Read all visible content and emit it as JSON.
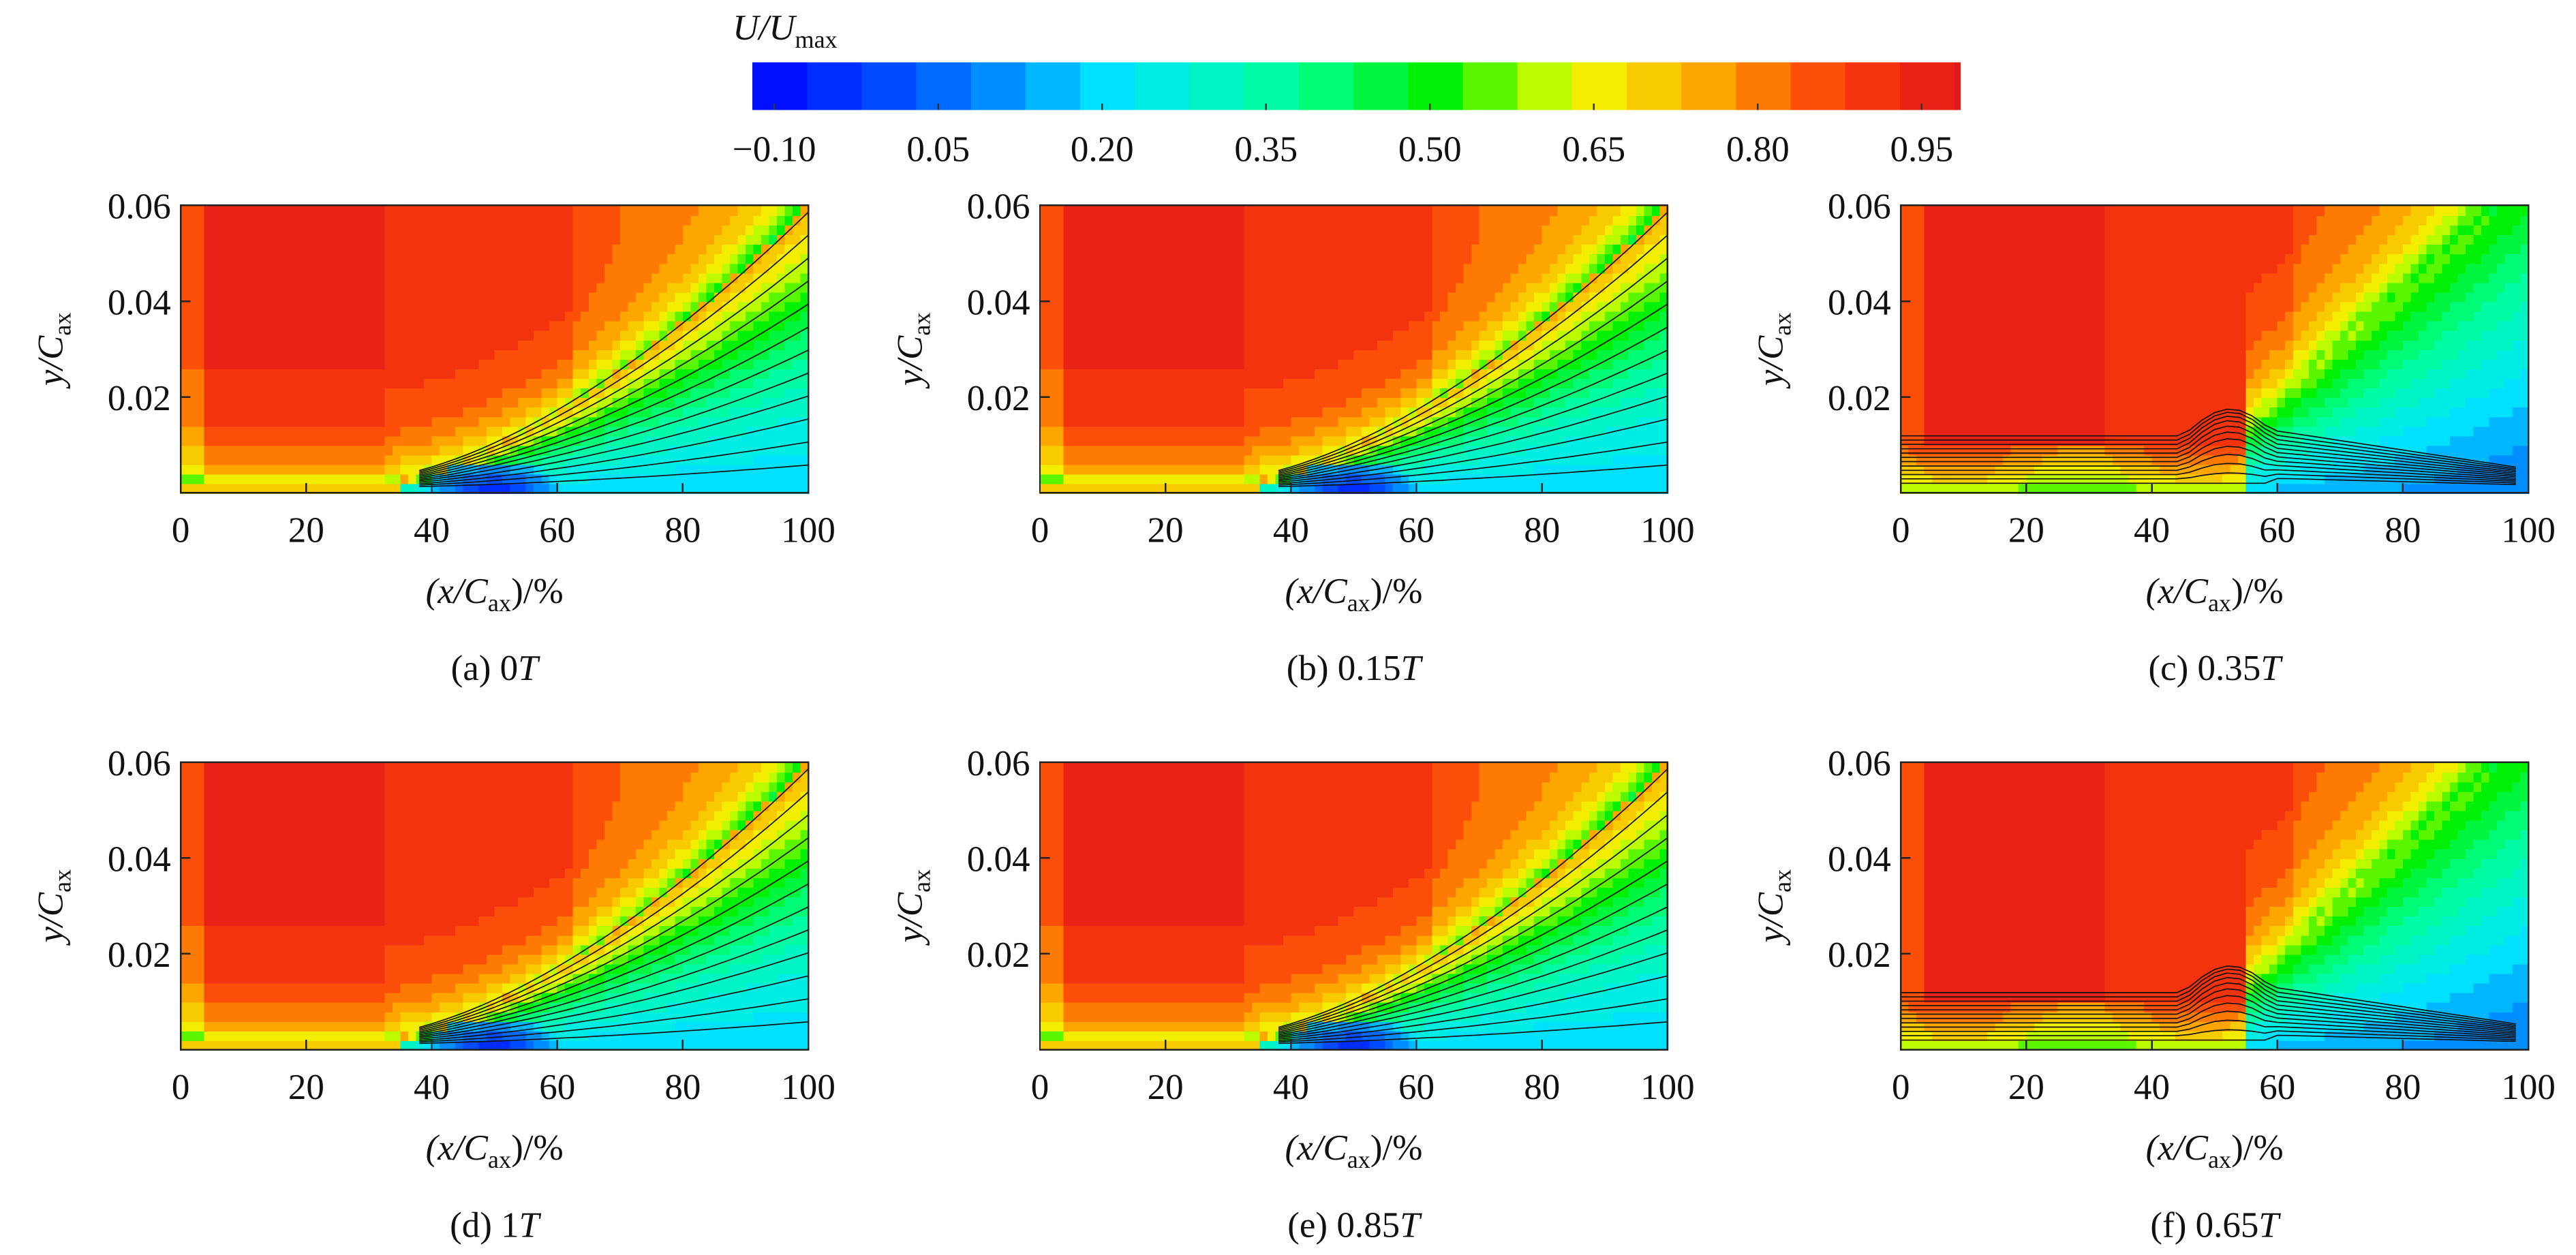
{
  "colorbar": {
    "label": [
      "U/U",
      "max"
    ],
    "clim": [
      -0.12,
      0.985
    ],
    "ticks": [
      {
        "value": -0.1,
        "label": "−0.10"
      },
      0.05,
      {
        "value": 0.2,
        "label": "0.20"
      },
      0.35,
      {
        "value": 0.5,
        "label": "0.50"
      },
      0.65,
      {
        "value": 0.8,
        "label": "0.80"
      },
      0.95
    ]
  },
  "chart_data": [
    {
      "type": "contour",
      "caption": [
        "(a) 0",
        "T"
      ],
      "xlabel": [
        "(x/C",
        "ax",
        ")/%"
      ],
      "ylabel": [
        "y/C",
        "ax"
      ],
      "xlim": [
        0,
        100
      ],
      "ylim": [
        0,
        0.06
      ],
      "xticks": [
        0,
        20,
        40,
        60,
        80,
        100
      ],
      "yticks": [
        0.02,
        0.04,
        0.06
      ]
    },
    {
      "type": "contour",
      "caption": [
        "(b) 0.15",
        "T"
      ],
      "xlabel": [
        "(x/C",
        "ax",
        ")/%"
      ],
      "ylabel": [
        "y/C",
        "ax"
      ],
      "xlim": [
        0,
        100
      ],
      "ylim": [
        0,
        0.06
      ],
      "xticks": [
        0,
        20,
        40,
        60,
        80,
        100
      ],
      "yticks": [
        0.02,
        0.04,
        0.06
      ]
    },
    {
      "type": "contour",
      "caption": [
        "(c) 0.35",
        "T"
      ],
      "xlabel": [
        "(x/C",
        "ax",
        ")/%"
      ],
      "ylabel": [
        "y/C",
        "ax"
      ],
      "xlim": [
        0,
        100
      ],
      "ylim": [
        0,
        0.06
      ],
      "xticks": [
        0,
        20,
        40,
        60,
        80,
        100
      ],
      "yticks": [
        0.02,
        0.04,
        0.06
      ]
    },
    {
      "type": "contour",
      "caption": [
        "(d) 1",
        "T"
      ],
      "xlabel": [
        "(x/C",
        "ax",
        ")/%"
      ],
      "ylabel": [
        "y/C",
        "ax"
      ],
      "xlim": [
        0,
        100
      ],
      "ylim": [
        0,
        0.06
      ],
      "xticks": [
        0,
        20,
        40,
        60,
        80,
        100
      ],
      "yticks": [
        0.02,
        0.04,
        0.06
      ]
    },
    {
      "type": "contour",
      "caption": [
        "(e) 0.85",
        "T"
      ],
      "xlabel": [
        "(x/C",
        "ax",
        ")/%"
      ],
      "ylabel": [
        "y/C",
        "ax"
      ],
      "xlim": [
        0,
        100
      ],
      "ylim": [
        0,
        0.06
      ],
      "xticks": [
        0,
        20,
        40,
        60,
        80,
        100
      ],
      "yticks": [
        0.02,
        0.04,
        0.06
      ]
    },
    {
      "type": "contour",
      "caption": [
        "(f) 0.65",
        "T"
      ],
      "xlabel": [
        "(x/C",
        "ax",
        ")/%"
      ],
      "ylabel": [
        "y/C",
        "ax"
      ],
      "xlim": [
        0,
        100
      ],
      "ylim": [
        0,
        0.06
      ],
      "xticks": [
        0,
        20,
        40,
        60,
        80,
        100
      ],
      "yticks": [
        0.02,
        0.04,
        0.06
      ]
    }
  ]
}
